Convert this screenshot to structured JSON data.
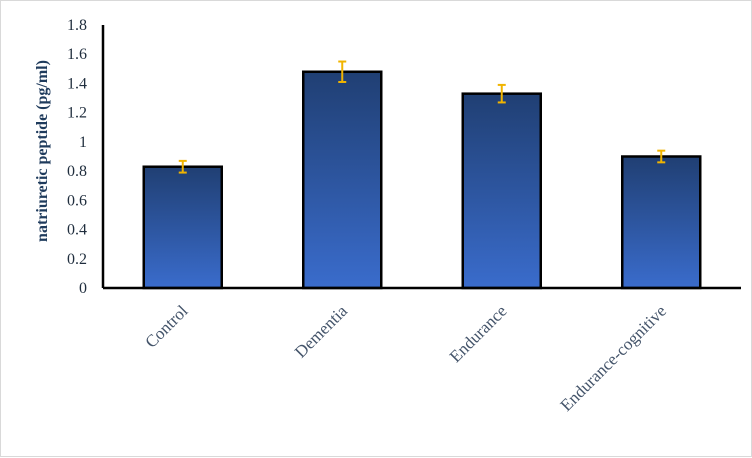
{
  "chart_data": {
    "type": "bar",
    "title": "",
    "xlabel": "",
    "ylabel": "natriuretic peptide (pg/ml)",
    "categories": [
      "Control",
      "Dementia",
      "Endurance",
      "Endurance-cognitive"
    ],
    "values": [
      0.83,
      1.48,
      1.33,
      0.9
    ],
    "errors": [
      0.04,
      0.07,
      0.06,
      0.04
    ],
    "ylim": [
      0,
      1.8
    ],
    "yticks": [
      "0",
      "0.2",
      "0.4",
      "0.6",
      "0.8",
      "1",
      "1.2",
      "1.4",
      "1.6",
      "1.8"
    ],
    "grid": false,
    "legend": "none",
    "colors": {
      "bar_top": "#203f73",
      "bar_bottom": "#3a6ccc",
      "bar_border": "#000000",
      "error_bar": "#f0b400",
      "axis": "#000000"
    }
  }
}
